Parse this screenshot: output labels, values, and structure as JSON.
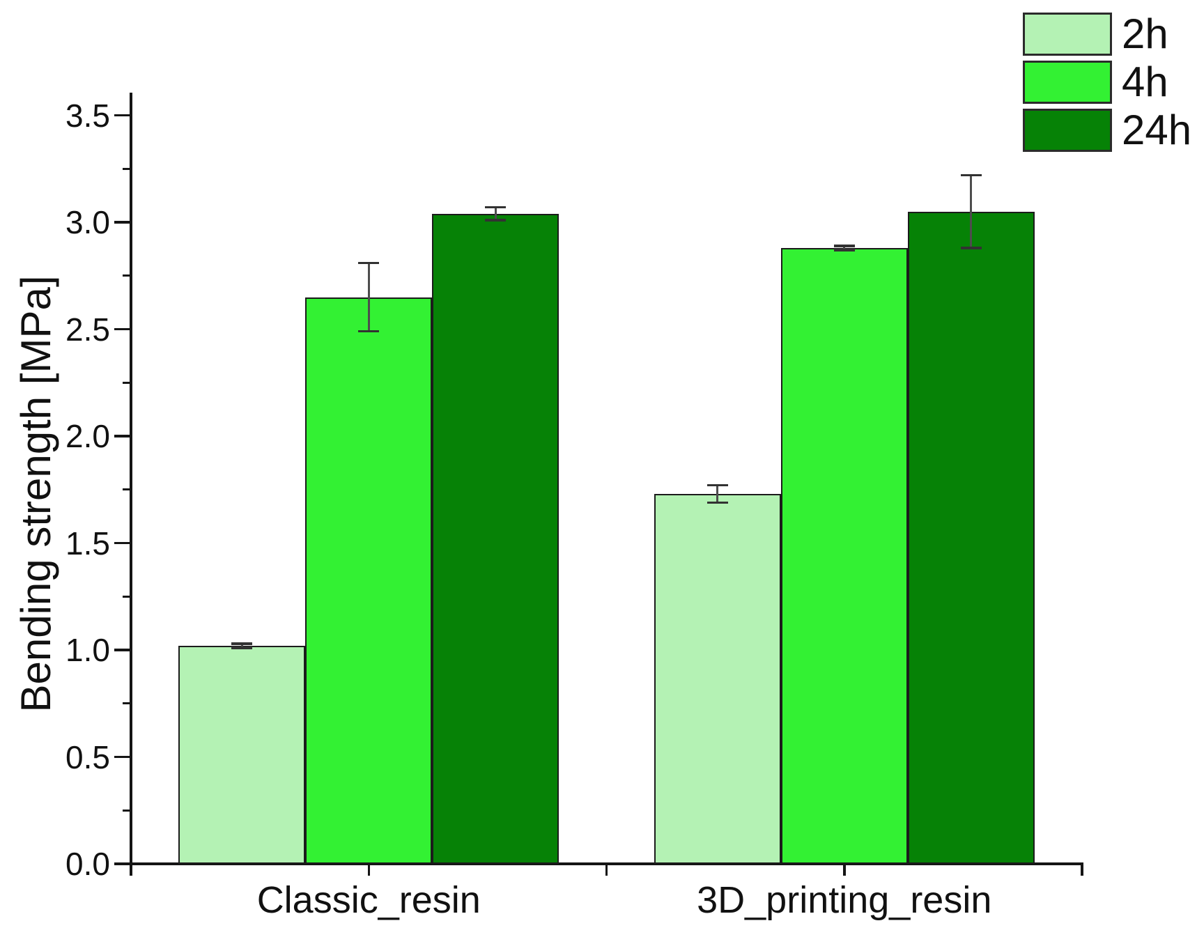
{
  "chart_data": {
    "type": "bar",
    "title": "",
    "xlabel": "",
    "ylabel": "Bending strength [MPa]",
    "categories": [
      "Classic_resin",
      "3D_printing_resin"
    ],
    "series": [
      {
        "name": "2h",
        "color": "#b4f2b4",
        "values": [
          1.02,
          1.73
        ],
        "errors": [
          0.01,
          0.04
        ]
      },
      {
        "name": "4h",
        "color": "#33f133",
        "values": [
          2.65,
          2.88
        ],
        "errors": [
          0.16,
          0.01
        ]
      },
      {
        "name": "24h",
        "color": "#068206",
        "values": [
          3.04,
          3.05
        ],
        "errors": [
          0.03,
          0.17
        ]
      }
    ],
    "ylim": [
      0,
      3.6
    ],
    "ytick_step": 0.5,
    "ytick_minor_step": 0.25,
    "ytick_labels": [
      "0.0",
      "0.5",
      "1.0",
      "1.5",
      "2.0",
      "2.5",
      "3.0",
      "3.5"
    ],
    "grid": false,
    "legend_position": "top-right",
    "bar_border_color": "#1b1b1b",
    "error_bar_color": "#4d4d4d",
    "axis_color": "#151515"
  }
}
